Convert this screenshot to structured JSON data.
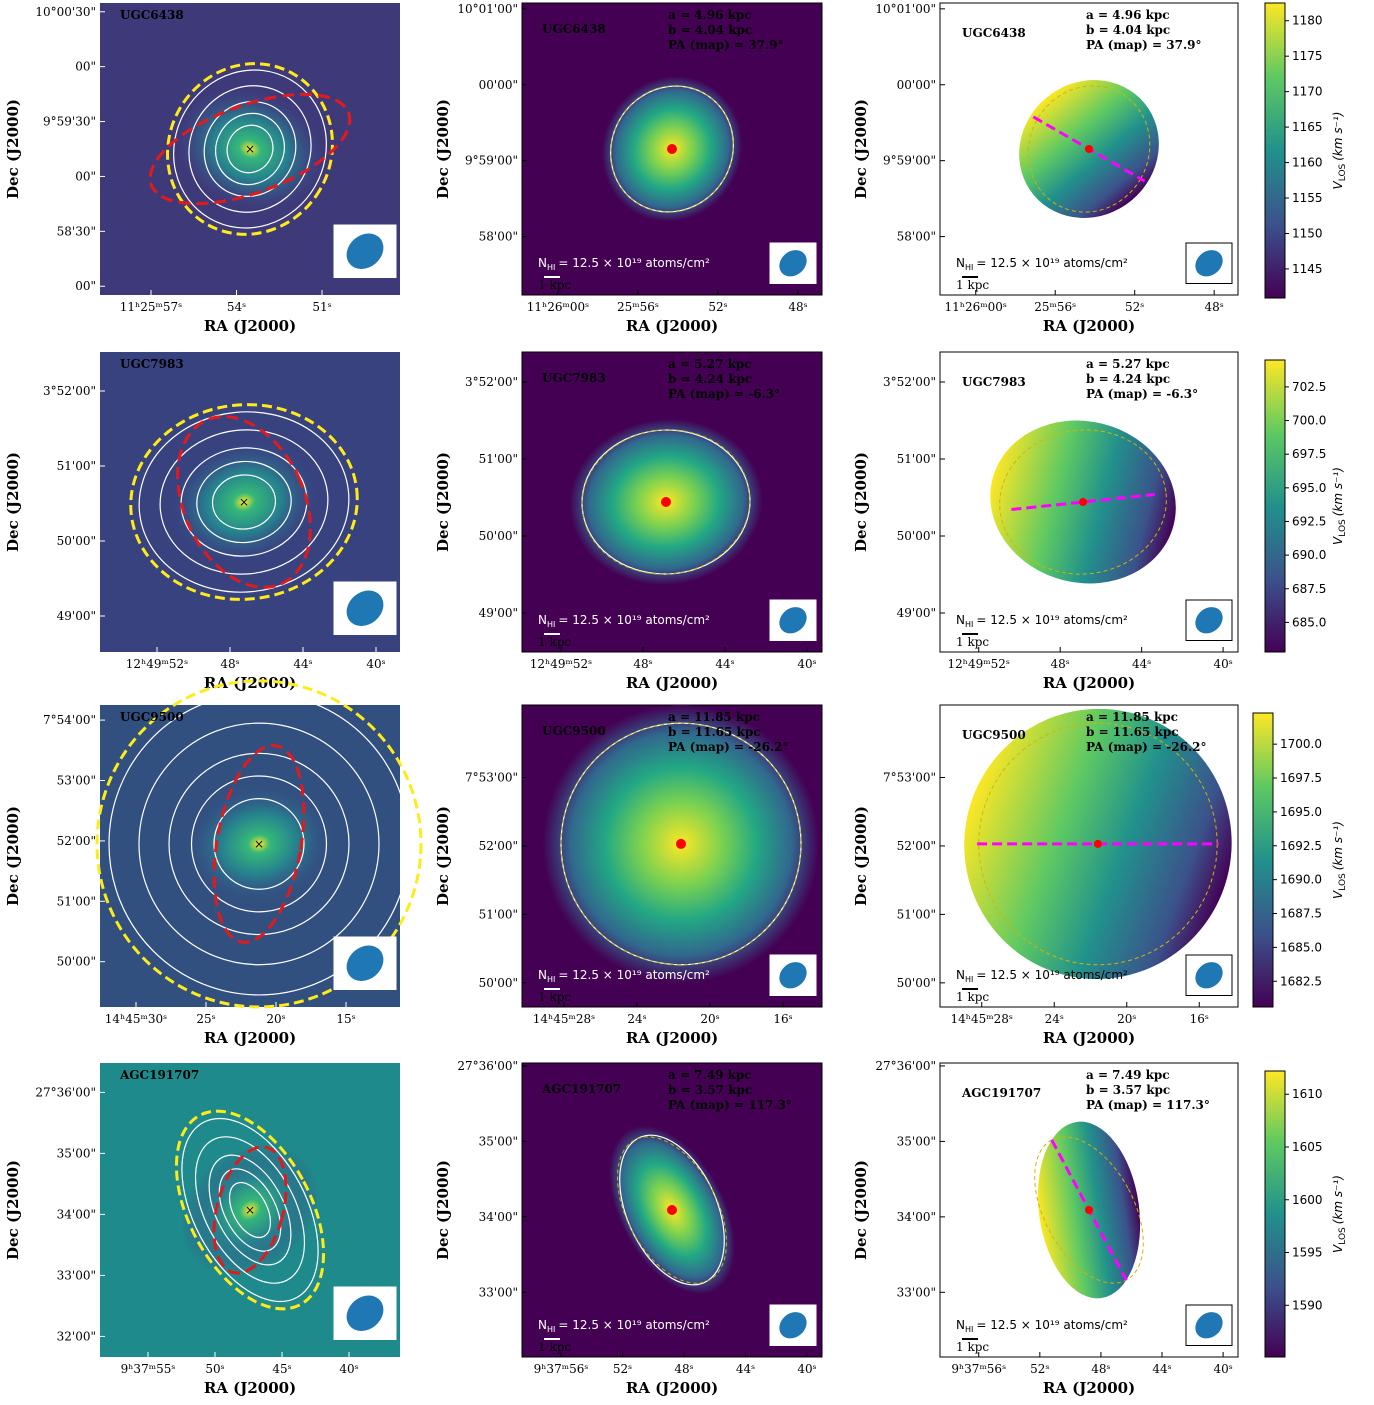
{
  "figure": {
    "x_label": "RA (J2000)",
    "y_label": "Dec (J2000)",
    "nhi": {
      "symbol": "N",
      "subscript": "HI",
      "text": "= 12.5 × 10¹⁹ atoms/cm²"
    },
    "scale_bar": "1 kpc",
    "colorbar_label": {
      "symbol": "V",
      "subscript": "LOS",
      "unit": "(km s⁻¹)"
    },
    "rows": [
      {
        "galaxy": "UGC6438",
        "a": "a = 4.96 kpc",
        "b": "b = 4.04 kpc",
        "pa": "PA (map) = 37.9°",
        "optical": {
          "yticks": [
            "10°00'30\"",
            "00\"",
            "9°59'30\"",
            "00\"",
            "58'30\"",
            "00\""
          ],
          "xticks": [
            "11ʰ25ᵐ57ˢ",
            "54ˢ",
            "51ˢ"
          ]
        },
        "moment0": {
          "yticks": [
            "10°01'00\"",
            "00'00\"",
            "9°59'00\"",
            "58'00\""
          ],
          "xticks": [
            "11ʰ26ᵐ00ˢ",
            "25ᵐ56ˢ",
            "52ˢ",
            "48ˢ"
          ]
        },
        "velocity": {
          "yticks": [
            "10°01'00\"",
            "00'00\"",
            "9°59'00\"",
            "58'00\""
          ],
          "xticks": [
            "11ʰ26ᵐ00ˢ",
            "25ᵐ56ˢ",
            "52ˢ",
            "48ˢ"
          ]
        },
        "colorbar": {
          "vlim": [
            1140.9,
            1182.5
          ],
          "ticks": [
            1145,
            1150,
            1155,
            1160,
            1165,
            1170,
            1175,
            1180
          ]
        }
      },
      {
        "galaxy": "UGC7983",
        "a": "a = 5.27 kpc",
        "b": "b = 4.24 kpc",
        "pa": "PA (map) = -6.3°",
        "optical": {
          "yticks": [
            "3°52'00\"",
            "51'00\"",
            "50'00\"",
            "49'00\""
          ],
          "xticks": [
            "12ʰ49ᵐ52ˢ",
            "48ˢ",
            "44ˢ",
            "40ˢ"
          ]
        },
        "moment0": {
          "yticks": [
            "3°52'00\"",
            "51'00\"",
            "50'00\"",
            "49'00\""
          ],
          "xticks": [
            "12ʰ49ᵐ52ˢ",
            "48ˢ",
            "44ˢ",
            "40ˢ"
          ]
        },
        "velocity": {
          "yticks": [
            "3°52'00\"",
            "51'00\"",
            "50'00\"",
            "49'00\""
          ],
          "xticks": [
            "12ʰ49ᵐ52ˢ",
            "48ˢ",
            "44ˢ",
            "40ˢ"
          ]
        },
        "colorbar": {
          "vlim": [
            682.8,
            704.5
          ],
          "ticks": [
            685.0,
            687.5,
            690.0,
            692.5,
            695.0,
            697.5,
            700.0,
            702.5
          ],
          "tick_labels": [
            "685.0",
            "687.5",
            "690.0",
            "692.5",
            "695.0",
            "697.5",
            "700.0",
            "702.5"
          ]
        }
      },
      {
        "galaxy": "UGC9500",
        "a": "a = 11.85 kpc",
        "b": "b = 11.65 kpc",
        "pa": "PA (map) = -26.2°",
        "optical": {
          "yticks": [
            "7°54'00\"",
            "53'00\"",
            "52'00\"",
            "51'00\"",
            "50'00\""
          ],
          "xticks": [
            "14ʰ45ᵐ30ˢ",
            "25ˢ",
            "20ˢ",
            "15ˢ"
          ]
        },
        "moment0": {
          "yticks": [
            "7°53'00\"",
            "52'00\"",
            "51'00\"",
            "50'00\""
          ],
          "xticks": [
            "14ʰ45ᵐ28ˢ",
            "24ˢ",
            "20ˢ",
            "16ˢ"
          ]
        },
        "velocity": {
          "yticks": [
            "7°53'00\"",
            "52'00\"",
            "51'00\"",
            "50'00\""
          ],
          "xticks": [
            "14ʰ45ᵐ28ˢ",
            "24ˢ",
            "20ˢ",
            "16ˢ"
          ]
        },
        "colorbar": {
          "vlim": [
            1680.6,
            1702.3
          ],
          "ticks": [
            1682.5,
            1685.0,
            1687.5,
            1690.0,
            1692.5,
            1695.0,
            1697.5,
            1700.0
          ],
          "tick_labels": [
            "1682.5",
            "1685.0",
            "1687.5",
            "1690.0",
            "1692.5",
            "1695.0",
            "1697.5",
            "1700.0"
          ]
        }
      },
      {
        "galaxy": "AGC191707",
        "a": "a = 7.49 kpc",
        "b": "b = 3.57 kpc",
        "pa": "PA (map) = 117.3°",
        "optical": {
          "yticks": [
            "27°36'00\"",
            "35'00\"",
            "34'00\"",
            "33'00\"",
            "32'00\""
          ],
          "xticks": [
            "9ʰ37ᵐ55ˢ",
            "50ˢ",
            "45ˢ",
            "40ˢ"
          ]
        },
        "moment0": {
          "yticks": [
            "27°36'00\"",
            "35'00\"",
            "34'00\"",
            "33'00\""
          ],
          "xticks": [
            "9ʰ37ᵐ56ˢ",
            "52ˢ",
            "48ˢ",
            "44ˢ",
            "40ˢ"
          ]
        },
        "velocity": {
          "yticks": [
            "27°36'00\"",
            "35'00\"",
            "34'00\"",
            "33'00\""
          ],
          "xticks": [
            "9ʰ37ᵐ56ˢ",
            "52ˢ",
            "48ˢ",
            "44ˢ",
            "40ˢ"
          ]
        },
        "colorbar": {
          "vlim": [
            1585.1,
            1612.2
          ],
          "ticks": [
            1590,
            1595,
            1600,
            1605,
            1610
          ]
        }
      }
    ]
  }
}
